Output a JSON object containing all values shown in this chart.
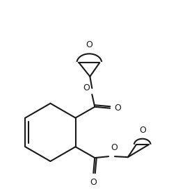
{
  "bg_color": "#ffffff",
  "line_color": "#1a1a1a",
  "line_width": 1.5,
  "font_size": 9,
  "figsize": [
    2.56,
    2.72
  ],
  "dpi": 100,
  "xlim": [
    0,
    256
  ],
  "ylim": [
    0,
    272
  ]
}
